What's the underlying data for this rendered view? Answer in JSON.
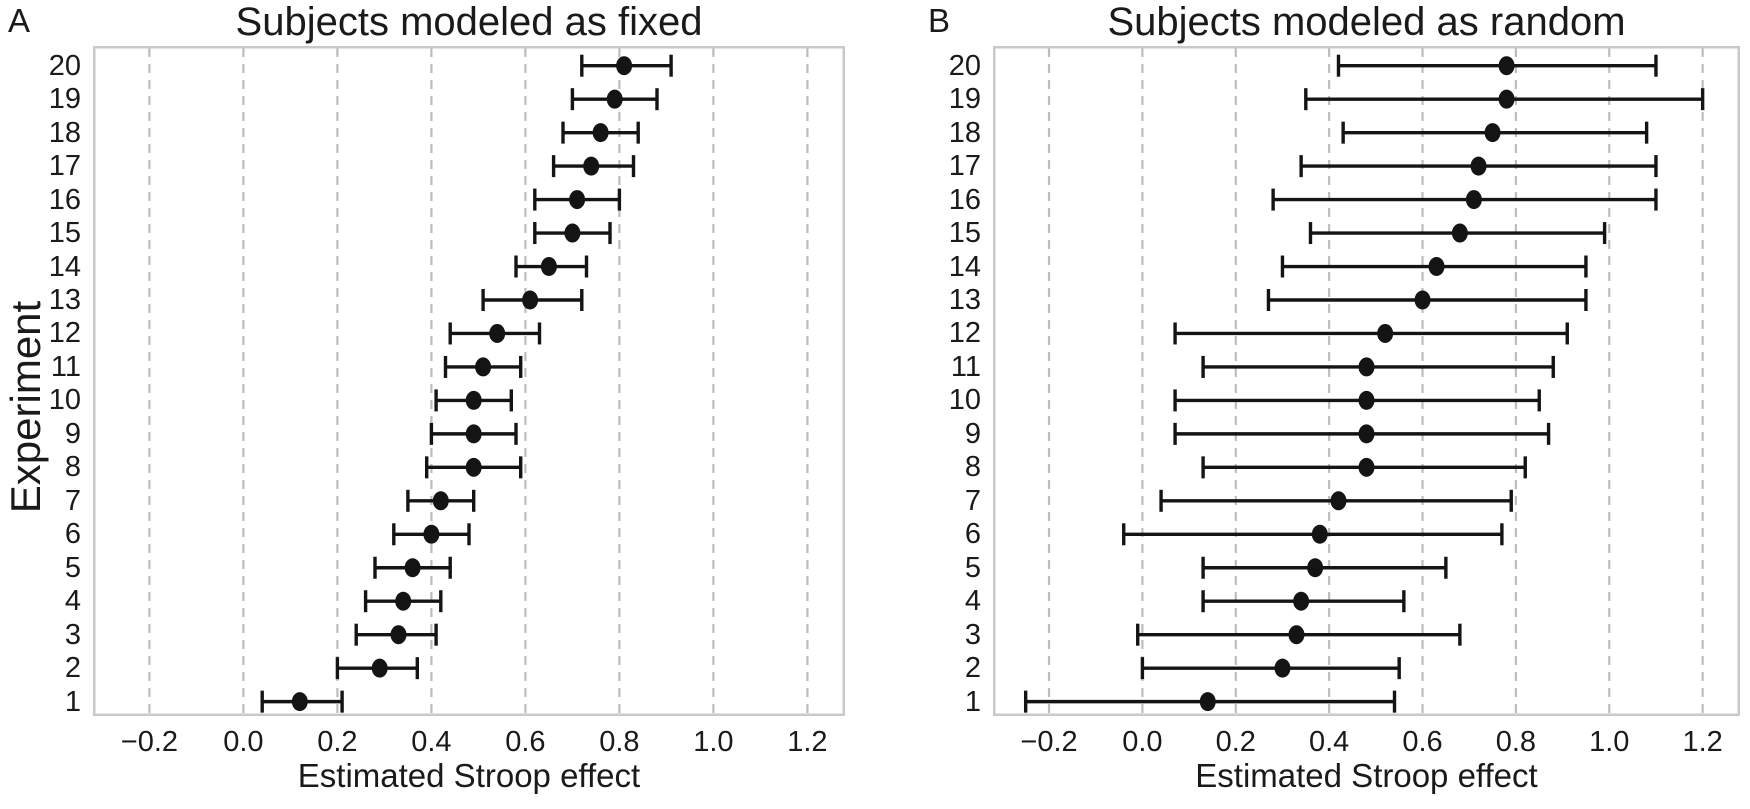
{
  "style": {
    "background": "#ffffff",
    "text_color": "#1a1a1a",
    "frame_color": "#c9c9c9",
    "grid_color": "#bdbdbd",
    "marker_color": "#141414"
  },
  "chart_data": [
    {
      "type": "scatter",
      "panel_label": "A",
      "title": "Subjects modeled as fixed",
      "xlabel": "Estimated Stroop effect",
      "ylabel": "Experiment",
      "legend": "none",
      "grid": "vertical-dashed",
      "xlim": [
        -0.32,
        1.28
      ],
      "x_tick_values": [
        -0.2,
        0.0,
        0.2,
        0.4,
        0.6,
        0.8,
        1.0,
        1.2
      ],
      "x_tick_labels": [
        "−0.2",
        "0.0",
        "0.2",
        "0.4",
        "0.6",
        "0.8",
        "1.0",
        "1.2"
      ],
      "categories": [
        1,
        2,
        3,
        4,
        5,
        6,
        7,
        8,
        9,
        10,
        11,
        12,
        13,
        14,
        15,
        16,
        17,
        18,
        19,
        20
      ],
      "series": [
        {
          "name": "Point estimate",
          "values": [
            0.12,
            0.29,
            0.33,
            0.34,
            0.36,
            0.4,
            0.42,
            0.49,
            0.49,
            0.49,
            0.51,
            0.54,
            0.61,
            0.65,
            0.7,
            0.71,
            0.74,
            0.76,
            0.79,
            0.81
          ]
        },
        {
          "name": "CI lower",
          "values": [
            0.04,
            0.2,
            0.24,
            0.26,
            0.28,
            0.32,
            0.35,
            0.39,
            0.4,
            0.41,
            0.43,
            0.44,
            0.51,
            0.58,
            0.62,
            0.62,
            0.66,
            0.68,
            0.7,
            0.72
          ]
        },
        {
          "name": "CI upper",
          "values": [
            0.21,
            0.37,
            0.41,
            0.42,
            0.44,
            0.48,
            0.49,
            0.59,
            0.58,
            0.57,
            0.59,
            0.63,
            0.72,
            0.73,
            0.78,
            0.8,
            0.83,
            0.84,
            0.88,
            0.91
          ]
        }
      ]
    },
    {
      "type": "scatter",
      "panel_label": "B",
      "title": "Subjects modeled as random",
      "xlabel": "Estimated Stroop effect",
      "ylabel": "",
      "legend": "none",
      "grid": "vertical-dashed",
      "xlim": [
        -0.32,
        1.28
      ],
      "x_tick_values": [
        -0.2,
        0.0,
        0.2,
        0.4,
        0.6,
        0.8,
        1.0,
        1.2
      ],
      "x_tick_labels": [
        "−0.2",
        "0.0",
        "0.2",
        "0.4",
        "0.6",
        "0.8",
        "1.0",
        "1.2"
      ],
      "categories": [
        1,
        2,
        3,
        4,
        5,
        6,
        7,
        8,
        9,
        10,
        11,
        12,
        13,
        14,
        15,
        16,
        17,
        18,
        19,
        20
      ],
      "series": [
        {
          "name": "Point estimate",
          "values": [
            0.14,
            0.3,
            0.33,
            0.34,
            0.37,
            0.38,
            0.42,
            0.48,
            0.48,
            0.48,
            0.48,
            0.52,
            0.6,
            0.63,
            0.68,
            0.71,
            0.72,
            0.75,
            0.78,
            0.78
          ]
        },
        {
          "name": "CI lower",
          "values": [
            -0.25,
            0.0,
            -0.01,
            0.13,
            0.13,
            -0.04,
            0.04,
            0.13,
            0.07,
            0.07,
            0.13,
            0.07,
            0.27,
            0.3,
            0.36,
            0.28,
            0.34,
            0.43,
            0.35,
            0.42
          ]
        },
        {
          "name": "CI upper",
          "values": [
            0.54,
            0.55,
            0.68,
            0.56,
            0.65,
            0.77,
            0.79,
            0.82,
            0.87,
            0.85,
            0.88,
            0.91,
            0.95,
            0.95,
            0.99,
            1.1,
            1.1,
            1.08,
            1.2,
            1.1
          ]
        }
      ]
    }
  ]
}
